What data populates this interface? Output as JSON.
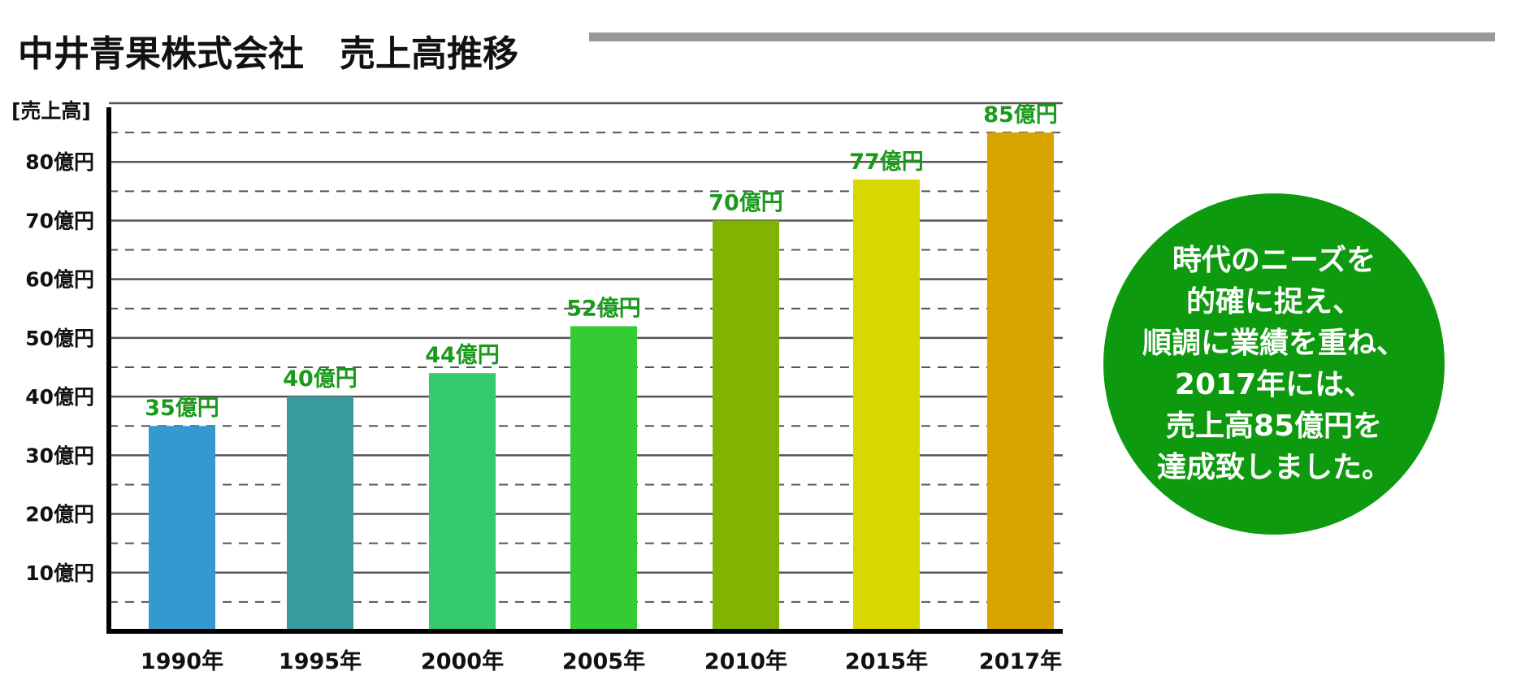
{
  "header": {
    "title": "中井青果株式会社　売上高推移"
  },
  "chart_data": {
    "type": "bar",
    "ylabel": "[売上高]",
    "categories": [
      "1990年",
      "1995年",
      "2000年",
      "2005年",
      "2010年",
      "2015年",
      "2017年"
    ],
    "values": [
      35,
      40,
      44,
      52,
      70,
      77,
      85
    ],
    "value_labels": [
      "35億円",
      "40億円",
      "44億円",
      "52億円",
      "70億円",
      "77億円",
      "85億円"
    ],
    "yticks": [
      10,
      20,
      30,
      40,
      50,
      60,
      70,
      80
    ],
    "ytick_labels": [
      "10億円",
      "20億円",
      "30億円",
      "40億円",
      "50億円",
      "60億円",
      "70億円",
      "80億円"
    ],
    "ylim": [
      0,
      90
    ],
    "grid": true,
    "legend": "none",
    "bar_colors": [
      "#3599d1",
      "#379a9c",
      "#35cb6c",
      "#33cc33",
      "#80b400",
      "#d8d800",
      "#d8a400"
    ],
    "value_label_color": "#1a9a1a"
  },
  "callout": {
    "lines": [
      "時代のニーズを",
      "的確に捉え、",
      "順調に業績を重ね、",
      "2017年には、",
      "売上高85億円を",
      "達成致しました。"
    ],
    "background": "#0e9a0e"
  }
}
